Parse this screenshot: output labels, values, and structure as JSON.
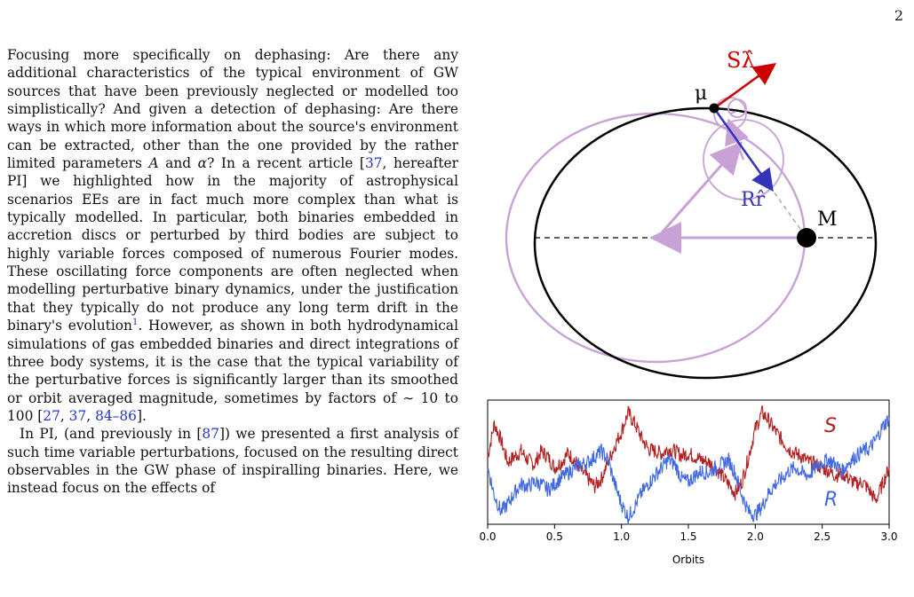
{
  "page_number": "2",
  "text": {
    "p1": [
      {
        "t": "Focusing more specifically on dephasing: Are there any additional characteristics of the typical environment of GW sources that have been previously neglected or modelled too simplistically? And given a detection of dephasing: Are there ways in which more information about the source's environment can be extracted, other than the one provided by the rather limited parameters "
      },
      {
        "t": "A",
        "style": "math"
      },
      {
        "t": " and "
      },
      {
        "t": "α",
        "style": "math"
      },
      {
        "t": "? In a recent article ["
      },
      {
        "t": "37",
        "style": "cite"
      },
      {
        "t": ", hereafter PI] we highlighted how in the majority of astrophysical scenarios EEs are in fact much more complex than what is typically modelled. In particular, both binaries embedded in accretion discs or perturbed by third bodies are subject to highly variable forces composed of numerous Fourier modes. These oscillating force components are often neglected when modelling perturbative binary dynamics, under the justification that they typically do not produce any long term drift in the binary's evolution"
      },
      {
        "t": "1",
        "style": "sup"
      },
      {
        "t": ". However, as shown in both hydrodynamical simulations of gas embedded binaries and direct integrations of three body systems, it is the case that the typical variability of the perturbative forces is significantly larger than its smoothed or orbit averaged magnitude, sometimes by factors of ∼ 10 to 100 ["
      },
      {
        "t": "27",
        "style": "cite"
      },
      {
        "t": ", "
      },
      {
        "t": "37",
        "style": "cite"
      },
      {
        "t": ", "
      },
      {
        "t": "84–86",
        "style": "cite"
      },
      {
        "t": "]."
      }
    ],
    "p2": [
      {
        "t": "In PI, (and previously in ["
      },
      {
        "t": "87",
        "style": "cite"
      },
      {
        "t": "]) we presented a first analysis of such time variable perturbations, focused on the resulting direct observables in the GW phase of inspiralling binaries. Here, we instead focus on the effects of"
      }
    ]
  },
  "orbit_diagram": {
    "labels": {
      "s_lambda": "Sλ̂",
      "mu": "μ",
      "r_hat": "Rr̂",
      "M": "M"
    },
    "colors": {
      "orbit": "#000000",
      "osculating": "#c8a2d6",
      "s_vector": "#cc0000",
      "r_vector": "#3333bb"
    }
  },
  "chart_data": {
    "type": "line",
    "title": "",
    "xlabel": "Orbits",
    "ylabel": "",
    "xlim": [
      0.0,
      3.0
    ],
    "xticks": [
      "0.0",
      "0.5",
      "1.0",
      "1.5",
      "2.0",
      "2.5",
      "3.0"
    ],
    "grid": false,
    "series": [
      {
        "name": "S",
        "color": "#b22222",
        "x": [
          0.0,
          0.05,
          0.1,
          0.15,
          0.2,
          0.25,
          0.3,
          0.35,
          0.4,
          0.45,
          0.5,
          0.55,
          0.6,
          0.65,
          0.7,
          0.75,
          0.8,
          0.85,
          0.9,
          0.95,
          1.0,
          1.05,
          1.1,
          1.15,
          1.2,
          1.25,
          1.3,
          1.35,
          1.4,
          1.45,
          1.5,
          1.55,
          1.6,
          1.65,
          1.7,
          1.75,
          1.8,
          1.85,
          1.9,
          1.95,
          2.0,
          2.05,
          2.1,
          2.15,
          2.2,
          2.25,
          2.3,
          2.35,
          2.4,
          2.45,
          2.5,
          2.55,
          2.6,
          2.65,
          2.7,
          2.75,
          2.8,
          2.85,
          2.9,
          2.95,
          3.0
        ],
        "values": [
          0.55,
          0.85,
          0.7,
          0.5,
          0.55,
          0.6,
          0.52,
          0.48,
          0.6,
          0.55,
          0.45,
          0.5,
          0.58,
          0.52,
          0.42,
          0.35,
          0.28,
          0.35,
          0.5,
          0.65,
          0.78,
          0.95,
          0.85,
          0.72,
          0.62,
          0.6,
          0.58,
          0.62,
          0.6,
          0.56,
          0.58,
          0.55,
          0.52,
          0.5,
          0.45,
          0.38,
          0.3,
          0.22,
          0.32,
          0.55,
          0.8,
          0.95,
          0.88,
          0.78,
          0.7,
          0.62,
          0.58,
          0.55,
          0.5,
          0.48,
          0.45,
          0.42,
          0.38,
          0.4,
          0.35,
          0.3,
          0.32,
          0.25,
          0.15,
          0.3,
          0.45
        ]
      },
      {
        "name": "R",
        "color": "#4169e1",
        "x": [
          0.0,
          0.05,
          0.1,
          0.15,
          0.2,
          0.25,
          0.3,
          0.35,
          0.4,
          0.45,
          0.5,
          0.55,
          0.6,
          0.65,
          0.7,
          0.75,
          0.8,
          0.85,
          0.9,
          0.95,
          1.0,
          1.05,
          1.1,
          1.15,
          1.2,
          1.25,
          1.3,
          1.35,
          1.4,
          1.45,
          1.5,
          1.55,
          1.6,
          1.65,
          1.7,
          1.75,
          1.8,
          1.85,
          1.9,
          1.95,
          2.0,
          2.05,
          2.1,
          2.15,
          2.2,
          2.25,
          2.3,
          2.35,
          2.4,
          2.45,
          2.5,
          2.55,
          2.6,
          2.65,
          2.7,
          2.75,
          2.8,
          2.85,
          2.9,
          2.95,
          3.0
        ],
        "values": [
          0.45,
          0.2,
          0.05,
          0.12,
          0.22,
          0.3,
          0.28,
          0.32,
          0.3,
          0.25,
          0.3,
          0.36,
          0.4,
          0.45,
          0.48,
          0.5,
          0.55,
          0.6,
          0.52,
          0.3,
          0.12,
          0.0,
          0.1,
          0.22,
          0.3,
          0.38,
          0.45,
          0.52,
          0.48,
          0.35,
          0.32,
          0.38,
          0.42,
          0.4,
          0.45,
          0.48,
          0.52,
          0.4,
          0.2,
          0.05,
          0.02,
          0.1,
          0.22,
          0.3,
          0.35,
          0.42,
          0.45,
          0.4,
          0.38,
          0.45,
          0.5,
          0.52,
          0.48,
          0.42,
          0.5,
          0.55,
          0.6,
          0.62,
          0.7,
          0.82,
          0.9
        ]
      }
    ],
    "legend_labels": [
      "S",
      "R"
    ]
  }
}
